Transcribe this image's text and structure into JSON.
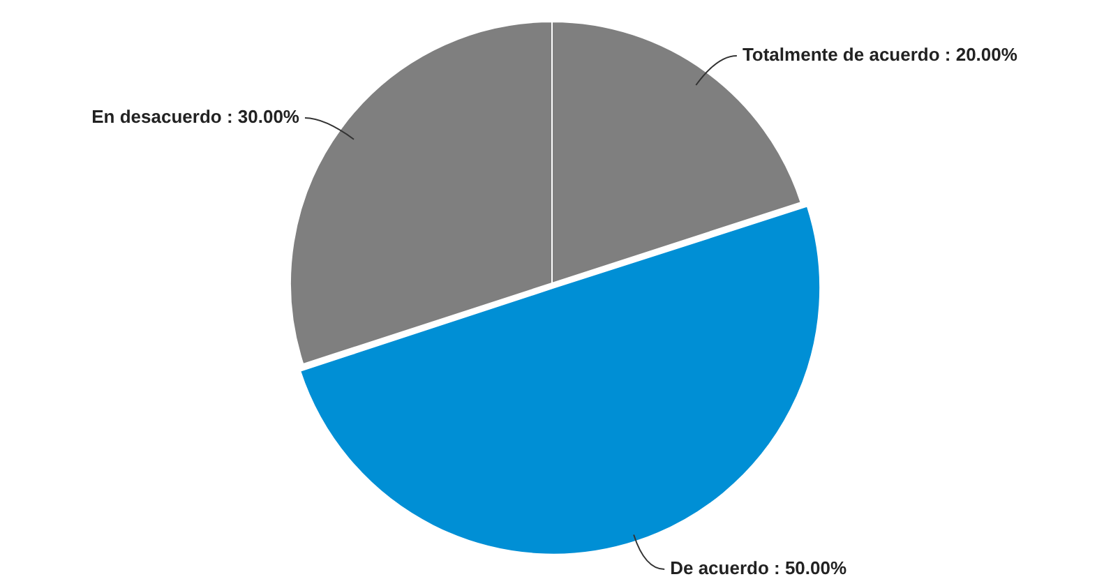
{
  "chart_data": {
    "type": "pie",
    "categories": [
      "Totalmente de acuerdo",
      "De acuerdo",
      "En desacuerdo"
    ],
    "values": [
      20,
      50,
      30
    ],
    "colors": [
      "#7f7f7f",
      "#008fd5",
      "#7f7f7f"
    ],
    "value_labels": [
      "20.00%",
      "50.00%",
      "30.00%"
    ],
    "legend": false
  }
}
